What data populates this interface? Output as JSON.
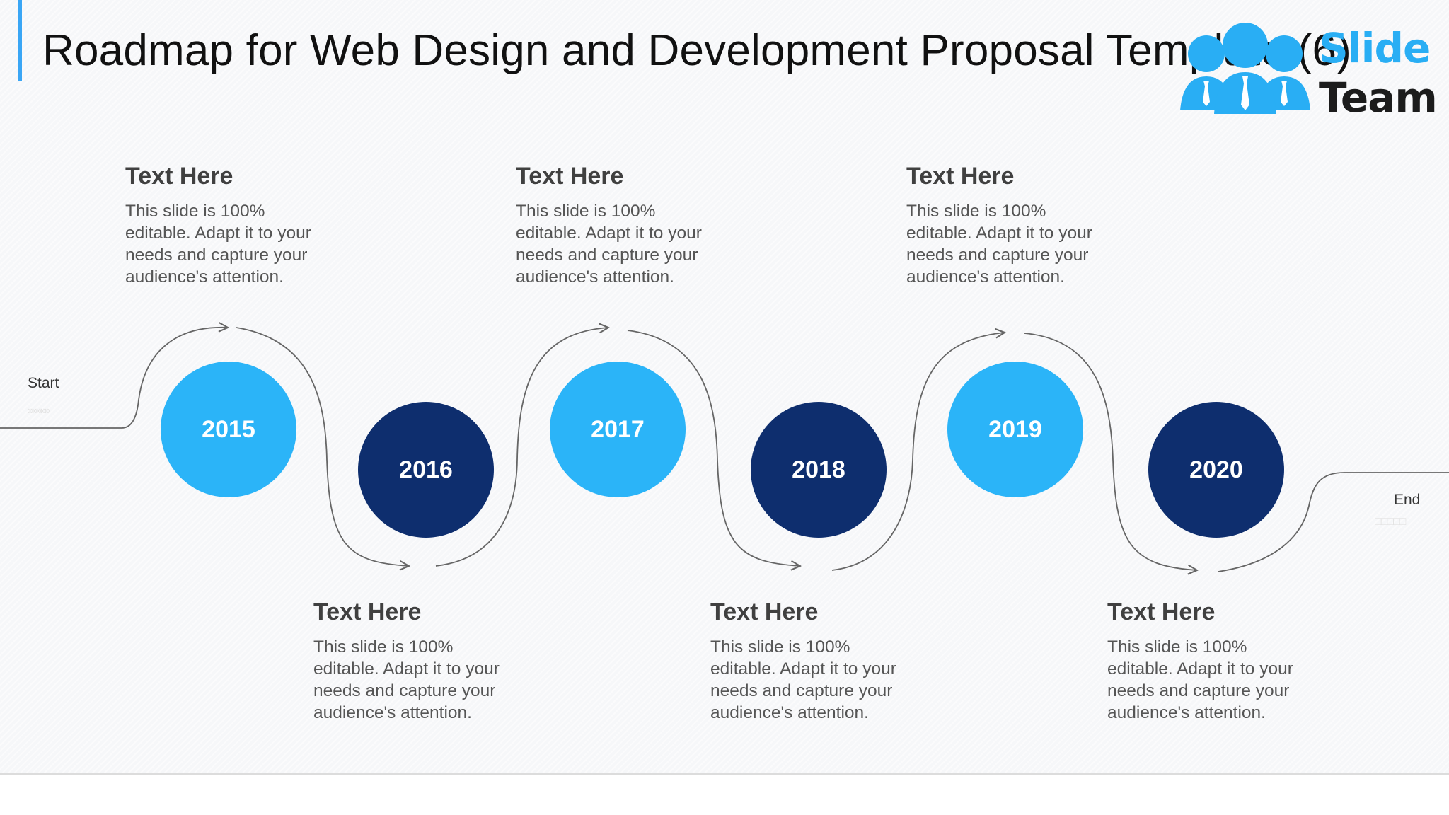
{
  "title": "Roadmap for Web Design and Development Proposal Template (6)",
  "logo": {
    "word1": "Slide",
    "word2": "Team"
  },
  "start_label": "Start",
  "end_label": "End",
  "start_marker": "»»»»»",
  "end_marker": "□□□□□",
  "milestones": [
    {
      "year": "2015",
      "heading": "Text Here",
      "text": "This slide is 100% editable. Adapt it to your needs and capture your audience's attention."
    },
    {
      "year": "2016",
      "heading": "Text Here",
      "text": "This slide is 100% editable. Adapt it to your needs and capture your audience's attention."
    },
    {
      "year": "2017",
      "heading": "Text Here",
      "text": "This slide is 100% editable. Adapt it to your needs and capture your audience's attention."
    },
    {
      "year": "2018",
      "heading": "Text Here",
      "text": "This slide is 100% editable. Adapt it to your needs and capture your audience's attention."
    },
    {
      "year": "2019",
      "heading": "Text Here",
      "text": "This slide is 100% editable. Adapt it to your needs and capture your audience's attention."
    },
    {
      "year": "2020",
      "heading": "Text Here",
      "text": "This slide is 100% editable. Adapt it to your needs and capture your audience's attention."
    }
  ],
  "colors": {
    "light_circle": "#2bb4f8",
    "dark_circle": "#0e2e6e",
    "accent": "#3aa6f5",
    "connector": "#666666"
  }
}
